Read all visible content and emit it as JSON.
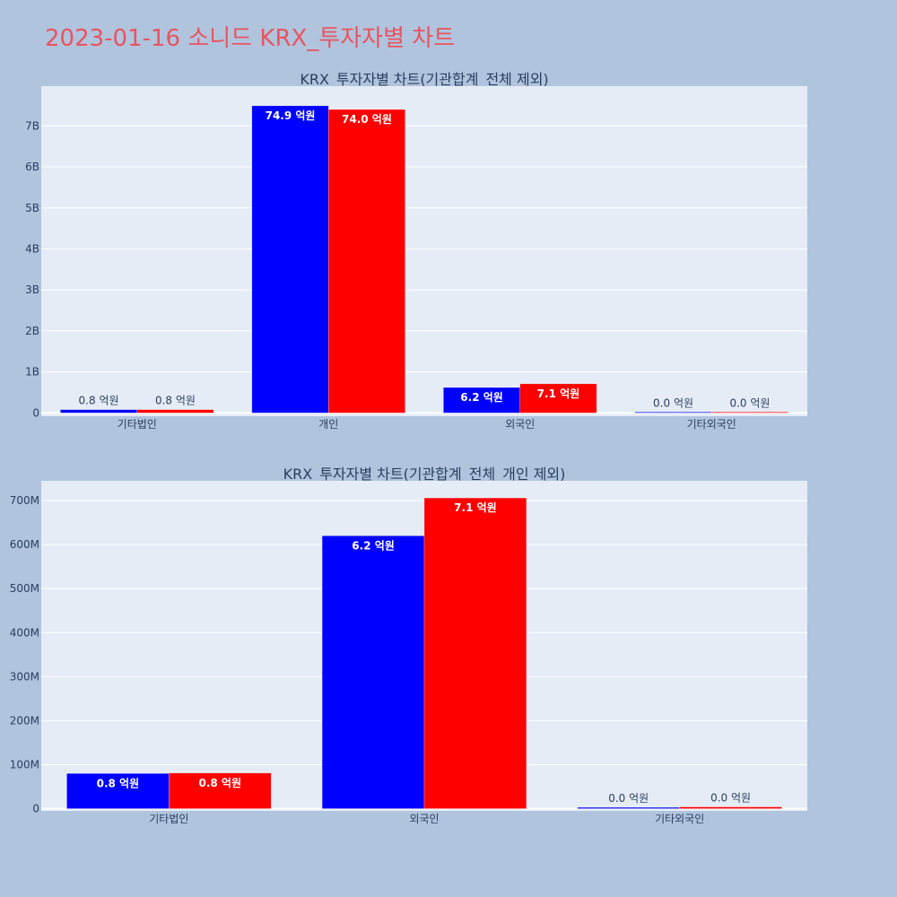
{
  "page": {
    "title": "2023-01-16 소니드 KRX_투자자별 차트"
  },
  "colors": {
    "background": "#b0c4de",
    "plot_bg": "#e5ecf6",
    "title": "#e8555f",
    "series_a": "#0000ff",
    "series_b": "#ff0000"
  },
  "chart_data": [
    {
      "type": "bar",
      "title": "KRX_투자자별 차트(기관합계_전체 제외)",
      "categories": [
        "기타법인",
        "개인",
        "외국인",
        "기타외국인"
      ],
      "series": [
        {
          "color": "#0000ff",
          "values": [
            80000000,
            7490000000,
            620000000,
            3000000
          ],
          "labels": [
            "0.8 억원",
            "74.9 억원",
            "6.2 억원",
            "0.0 억원"
          ]
        },
        {
          "color": "#ff0000",
          "values": [
            80000000,
            7400000000,
            710000000,
            3000000
          ],
          "labels": [
            "0.8 억원",
            "74.0 억원",
            "7.1 억원",
            "0.0 억원"
          ]
        }
      ],
      "yticks": [
        0,
        1000000000,
        2000000000,
        3000000000,
        4000000000,
        5000000000,
        6000000000,
        7000000000
      ],
      "ytick_labels": [
        "0",
        "1B",
        "2B",
        "3B",
        "4B",
        "5B",
        "6B",
        "7B"
      ],
      "ylim": [
        -80000000,
        7970000000
      ],
      "grid": true
    },
    {
      "type": "bar",
      "title": "KRX_투자자별 차트(기관합계_전체_개인 제외)",
      "categories": [
        "기타법인",
        "외국인",
        "기타외국인"
      ],
      "series": [
        {
          "color": "#0000ff",
          "values": [
            80000000,
            620000000,
            3000000
          ],
          "labels": [
            "0.8 억원",
            "6.2 억원",
            "0.0 억원"
          ]
        },
        {
          "color": "#ff0000",
          "values": [
            81000000,
            706000000,
            4000000
          ],
          "labels": [
            "0.8 억원",
            "7.1 억원",
            "0.0 억원"
          ]
        }
      ],
      "yticks": [
        0,
        100000000,
        200000000,
        300000000,
        400000000,
        500000000,
        600000000,
        700000000
      ],
      "ytick_labels": [
        "0",
        "100M",
        "200M",
        "300M",
        "400M",
        "500M",
        "600M",
        "700M"
      ],
      "ylim": [
        -5000000,
        745000000
      ],
      "grid": true
    }
  ]
}
